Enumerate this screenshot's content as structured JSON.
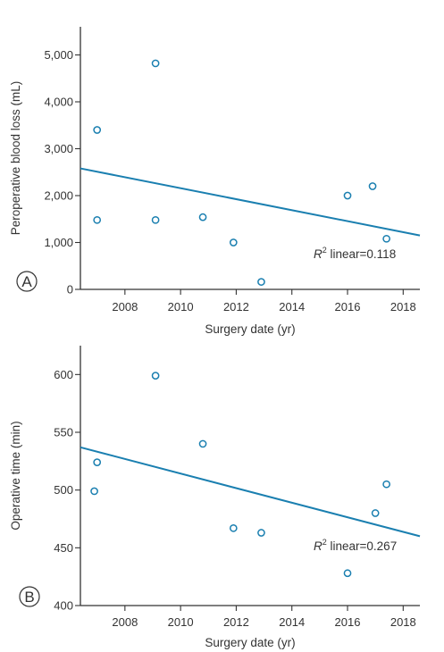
{
  "chart_data": [
    {
      "type": "scatter",
      "panel_label": "A",
      "xlabel": "Surgery date (yr)",
      "ylabel": "Peroperative blood loss (mL)",
      "xlim": [
        2006.4,
        2018.6
      ],
      "ylim": [
        0,
        5600
      ],
      "xticks": [
        2008,
        2010,
        2012,
        2014,
        2016,
        2018
      ],
      "xtick_labels": [
        "2008",
        "2010",
        "2012",
        "2014",
        "2016",
        "2018"
      ],
      "yticks": [
        0,
        1000,
        2000,
        3000,
        4000,
        5000
      ],
      "ytick_labels": [
        "0",
        "1,000",
        "2,000",
        "3,000",
        "4,000",
        "5,000"
      ],
      "points": [
        {
          "x": 2007.0,
          "y": 3400
        },
        {
          "x": 2007.0,
          "y": 1480
        },
        {
          "x": 2009.1,
          "y": 4820
        },
        {
          "x": 2009.1,
          "y": 1480
        },
        {
          "x": 2010.8,
          "y": 1540
        },
        {
          "x": 2011.9,
          "y": 1000
        },
        {
          "x": 2012.9,
          "y": 160
        },
        {
          "x": 2016.0,
          "y": 2000
        },
        {
          "x": 2016.9,
          "y": 2200
        },
        {
          "x": 2017.4,
          "y": 1080
        }
      ],
      "trendline": {
        "x": [
          2006.4,
          2018.6
        ],
        "y": [
          2580,
          1150
        ]
      },
      "annotation": {
        "r_symbol": "R",
        "superscript": "2",
        "text": " linear=0.118"
      },
      "grid": false,
      "legend": "none"
    },
    {
      "type": "scatter",
      "panel_label": "B",
      "xlabel": "Surgery date (yr)",
      "ylabel": "Operative time (min)",
      "xlim": [
        2006.4,
        2018.6
      ],
      "ylim": [
        400,
        625
      ],
      "xticks": [
        2008,
        2010,
        2012,
        2014,
        2016,
        2018
      ],
      "xtick_labels": [
        "2008",
        "2010",
        "2012",
        "2014",
        "2016",
        "2018"
      ],
      "yticks": [
        400,
        450,
        500,
        550,
        600
      ],
      "ytick_labels": [
        "400",
        "450",
        "500",
        "550",
        "600"
      ],
      "points": [
        {
          "x": 2006.9,
          "y": 499
        },
        {
          "x": 2007.0,
          "y": 524
        },
        {
          "x": 2009.1,
          "y": 599
        },
        {
          "x": 2010.8,
          "y": 540
        },
        {
          "x": 2011.9,
          "y": 467
        },
        {
          "x": 2012.9,
          "y": 463
        },
        {
          "x": 2016.0,
          "y": 428
        },
        {
          "x": 2017.0,
          "y": 480
        },
        {
          "x": 2017.4,
          "y": 505
        }
      ],
      "trendline": {
        "x": [
          2006.4,
          2018.6
        ],
        "y": [
          537,
          460
        ]
      },
      "annotation": {
        "r_symbol": "R",
        "superscript": "2",
        "text": " linear=0.267"
      },
      "grid": false,
      "legend": "none"
    }
  ],
  "colors": {
    "series": "#1a7fb0",
    "axis": "#333333"
  }
}
